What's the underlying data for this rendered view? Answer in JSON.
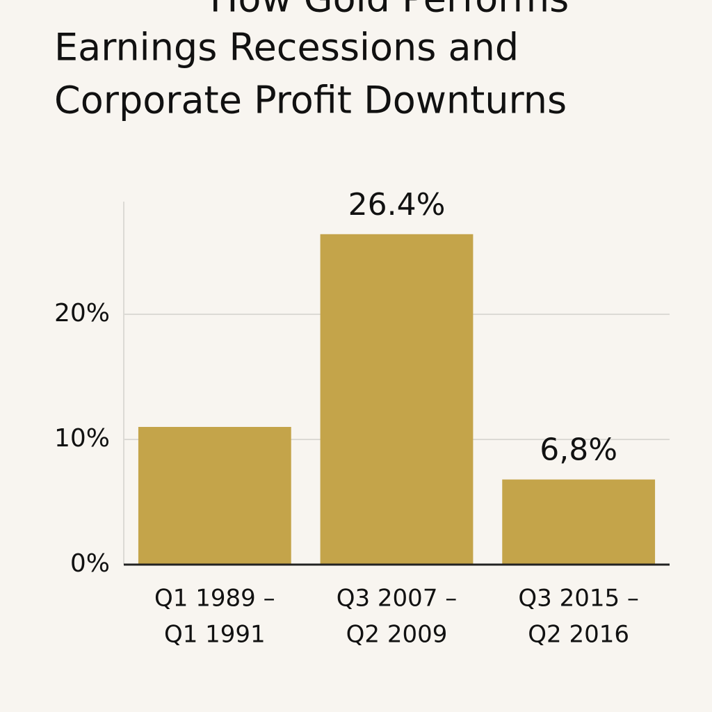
{
  "chart_data": {
    "type": "bar",
    "title": [
      "How Gold Performs",
      "Earnings Recessions and",
      "Corporate Profit Downturns"
    ],
    "categories": [
      [
        "Q1 1989 –",
        "Q1 1991"
      ],
      [
        "Q3 2007 –",
        "Q2 2009"
      ],
      [
        "Q3 2015 –",
        "Q2 2016"
      ]
    ],
    "values": [
      11,
      26.4,
      6.8
    ],
    "value_labels": [
      null,
      "26.4%",
      "6,8%"
    ],
    "color": "#c4a44a",
    "ylim": [
      0,
      29
    ],
    "yticks": [
      {
        "value": 0,
        "label": "0%"
      },
      {
        "value": 10,
        "label": "10%"
      },
      {
        "value": 20,
        "label": "20%"
      }
    ],
    "grid": true
  }
}
